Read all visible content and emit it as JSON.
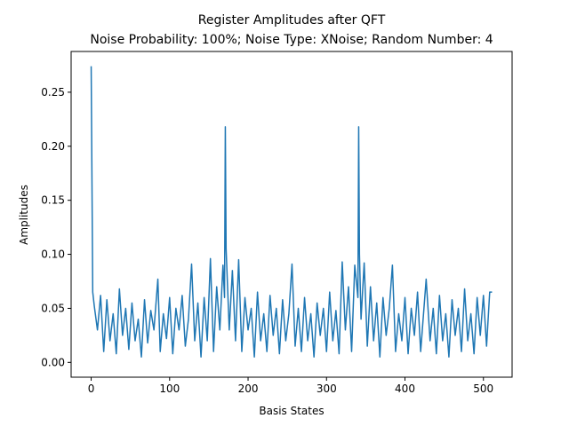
{
  "chart_data": {
    "type": "line",
    "title": "Register Amplitudes after QFT",
    "subtitle": "Noise Probability: 100%; Noise Type: XNoise; Random Number: 4",
    "x_label": "Basis States",
    "y_label": "Amplitudes",
    "x": [
      0,
      2,
      4,
      8,
      12,
      16,
      20,
      24,
      28,
      32,
      36,
      40,
      44,
      48,
      52,
      56,
      60,
      64,
      68,
      72,
      76,
      80,
      85,
      88,
      92,
      96,
      100,
      104,
      108,
      112,
      116,
      120,
      124,
      128,
      132,
      136,
      140,
      144,
      148,
      152,
      156,
      160,
      164,
      168,
      170,
      171,
      172,
      176,
      180,
      184,
      188,
      192,
      196,
      200,
      204,
      208,
      212,
      216,
      220,
      224,
      228,
      232,
      236,
      240,
      244,
      248,
      252,
      256,
      260,
      264,
      268,
      272,
      276,
      280,
      284,
      288,
      292,
      296,
      300,
      304,
      308,
      312,
      316,
      320,
      324,
      328,
      332,
      336,
      340,
      341,
      342,
      344,
      348,
      352,
      356,
      360,
      364,
      368,
      372,
      376,
      380,
      384,
      388,
      392,
      396,
      400,
      404,
      408,
      412,
      416,
      420,
      427,
      432,
      436,
      440,
      444,
      448,
      452,
      456,
      460,
      464,
      468,
      472,
      476,
      480,
      484,
      488,
      492,
      496,
      500,
      504,
      508,
      511
    ],
    "series": [
      {
        "color": "#1f77b4",
        "values": [
          0.274,
          0.065,
          0.052,
          0.03,
          0.062,
          0.01,
          0.058,
          0.02,
          0.045,
          0.008,
          0.068,
          0.025,
          0.05,
          0.012,
          0.055,
          0.02,
          0.04,
          0.005,
          0.058,
          0.018,
          0.048,
          0.03,
          0.077,
          0.01,
          0.045,
          0.022,
          0.06,
          0.008,
          0.05,
          0.03,
          0.062,
          0.015,
          0.04,
          0.091,
          0.02,
          0.055,
          0.005,
          0.06,
          0.02,
          0.096,
          0.01,
          0.07,
          0.03,
          0.09,
          0.06,
          0.218,
          0.105,
          0.03,
          0.085,
          0.02,
          0.095,
          0.01,
          0.06,
          0.03,
          0.05,
          0.005,
          0.065,
          0.02,
          0.045,
          0.01,
          0.062,
          0.025,
          0.05,
          0.008,
          0.058,
          0.02,
          0.045,
          0.091,
          0.015,
          0.05,
          0.01,
          0.06,
          0.02,
          0.045,
          0.005,
          0.055,
          0.025,
          0.05,
          0.01,
          0.065,
          0.02,
          0.048,
          0.008,
          0.093,
          0.03,
          0.07,
          0.01,
          0.09,
          0.06,
          0.218,
          0.1,
          0.04,
          0.092,
          0.015,
          0.07,
          0.02,
          0.055,
          0.005,
          0.06,
          0.025,
          0.05,
          0.09,
          0.01,
          0.045,
          0.02,
          0.06,
          0.008,
          0.05,
          0.025,
          0.065,
          0.01,
          0.077,
          0.02,
          0.05,
          0.008,
          0.062,
          0.02,
          0.045,
          0.005,
          0.058,
          0.025,
          0.05,
          0.01,
          0.068,
          0.02,
          0.045,
          0.008,
          0.06,
          0.025,
          0.062,
          0.015,
          0.065,
          0.065
        ]
      }
    ],
    "xlim": [
      -25.55,
      536.55
    ],
    "ylim": [
      -0.0137,
      0.2877
    ],
    "xticks": [
      0,
      100,
      200,
      300,
      400,
      500
    ],
    "yticks": [
      {
        "value": 0,
        "label": "0.00"
      },
      {
        "value": 0.05,
        "label": "0.05"
      },
      {
        "value": 0.1,
        "label": "0.10"
      },
      {
        "value": 0.15,
        "label": "0.15"
      },
      {
        "value": 0.2,
        "label": "0.20"
      },
      {
        "value": 0.25,
        "label": "0.25"
      }
    ],
    "grid": false
  }
}
